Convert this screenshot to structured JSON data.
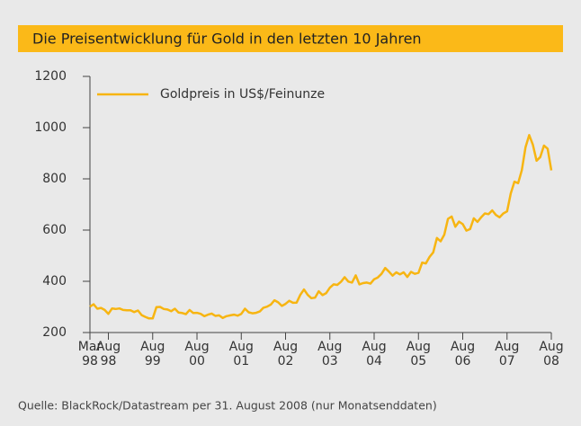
{
  "chart_data": {
    "type": "line",
    "title": "Die Preisentwicklung für Gold in den letzten 10 Jahren",
    "source": "Quelle: BlackRock/Datastream per 31. August 2008 (nur Monatsenddaten)",
    "legend": "upper left",
    "x": [
      "1998-03",
      "1998-04",
      "1998-05",
      "1998-06",
      "1998-07",
      "1998-08",
      "1998-09",
      "1998-10",
      "1998-11",
      "1998-12",
      "1999-01",
      "1999-02",
      "1999-03",
      "1999-04",
      "1999-05",
      "1999-06",
      "1999-07",
      "1999-08",
      "1999-09",
      "1999-10",
      "1999-11",
      "1999-12",
      "2000-01",
      "2000-02",
      "2000-03",
      "2000-04",
      "2000-05",
      "2000-06",
      "2000-07",
      "2000-08",
      "2000-09",
      "2000-10",
      "2000-11",
      "2000-12",
      "2001-01",
      "2001-02",
      "2001-03",
      "2001-04",
      "2001-05",
      "2001-06",
      "2001-07",
      "2001-08",
      "2001-09",
      "2001-10",
      "2001-11",
      "2001-12",
      "2002-01",
      "2002-02",
      "2002-03",
      "2002-04",
      "2002-05",
      "2002-06",
      "2002-07",
      "2002-08",
      "2002-09",
      "2002-10",
      "2002-11",
      "2002-12",
      "2003-01",
      "2003-02",
      "2003-03",
      "2003-04",
      "2003-05",
      "2003-06",
      "2003-07",
      "2003-08",
      "2003-09",
      "2003-10",
      "2003-11",
      "2003-12",
      "2004-01",
      "2004-02",
      "2004-03",
      "2004-04",
      "2004-05",
      "2004-06",
      "2004-07",
      "2004-08",
      "2004-09",
      "2004-10",
      "2004-11",
      "2004-12",
      "2005-01",
      "2005-02",
      "2005-03",
      "2005-04",
      "2005-05",
      "2005-06",
      "2005-07",
      "2005-08",
      "2005-09",
      "2005-10",
      "2005-11",
      "2005-12",
      "2006-01",
      "2006-02",
      "2006-03",
      "2006-04",
      "2006-05",
      "2006-06",
      "2006-07",
      "2006-08",
      "2006-09",
      "2006-10",
      "2006-11",
      "2006-12",
      "2007-01",
      "2007-02",
      "2007-03",
      "2007-04",
      "2007-05",
      "2007-06",
      "2007-07",
      "2007-08",
      "2007-09",
      "2007-10",
      "2007-11",
      "2007-12",
      "2008-01",
      "2008-02",
      "2008-03",
      "2008-04",
      "2008-05",
      "2008-06",
      "2008-07",
      "2008-08"
    ],
    "series": [
      {
        "name": "Goldpreis in US$/Feinunze",
        "color": "#f7b512",
        "values": [
          301,
          310,
          293,
          296,
          288,
          273,
          294,
          292,
          294,
          288,
          287,
          287,
          280,
          286,
          268,
          261,
          255,
          255,
          299,
          300,
          292,
          290,
          283,
          293,
          278,
          276,
          272,
          288,
          276,
          277,
          273,
          264,
          270,
          274,
          265,
          267,
          257,
          264,
          267,
          270,
          266,
          273,
          293,
          279,
          275,
          277,
          282,
          297,
          301,
          309,
          326,
          318,
          304,
          312,
          324,
          316,
          317,
          347,
          368,
          347,
          334,
          336,
          361,
          346,
          354,
          375,
          388,
          386,
          398,
          416,
          399,
          395,
          423,
          388,
          393,
          395,
          391,
          408,
          415,
          429,
          452,
          438,
          422,
          435,
          427,
          435,
          417,
          437,
          429,
          433,
          473,
          470,
          495,
          513,
          569,
          556,
          582,
          644,
          653,
          613,
          633,
          623,
          598,
          604,
          646,
          632,
          650,
          665,
          662,
          677,
          659,
          650,
          665,
          673,
          743,
          789,
          783,
          834,
          923,
          971,
          933,
          871,
          885,
          930,
          918,
          833
        ]
      }
    ],
    "xlim": [
      "1998-03",
      "2008-08"
    ],
    "xticks": [
      {
        "value": "1998-03",
        "label": "Mar\n98"
      },
      {
        "value": "1998-08",
        "label": "Aug\n98"
      },
      {
        "value": "1999-08",
        "label": "Aug\n99"
      },
      {
        "value": "2000-08",
        "label": "Aug\n00"
      },
      {
        "value": "2001-08",
        "label": "Aug\n01"
      },
      {
        "value": "2002-08",
        "label": "Aug\n02"
      },
      {
        "value": "2003-08",
        "label": "Aug\n03"
      },
      {
        "value": "2004-08",
        "label": "Aug\n04"
      },
      {
        "value": "2005-08",
        "label": "Aug\n05"
      },
      {
        "value": "2006-08",
        "label": "Aug\n06"
      },
      {
        "value": "2007-08",
        "label": "Aug\n07"
      },
      {
        "value": "2008-08",
        "label": "Aug\n08"
      }
    ],
    "ylim": [
      200,
      1200
    ],
    "yticks": [
      200,
      400,
      600,
      800,
      1000,
      1200
    ]
  }
}
